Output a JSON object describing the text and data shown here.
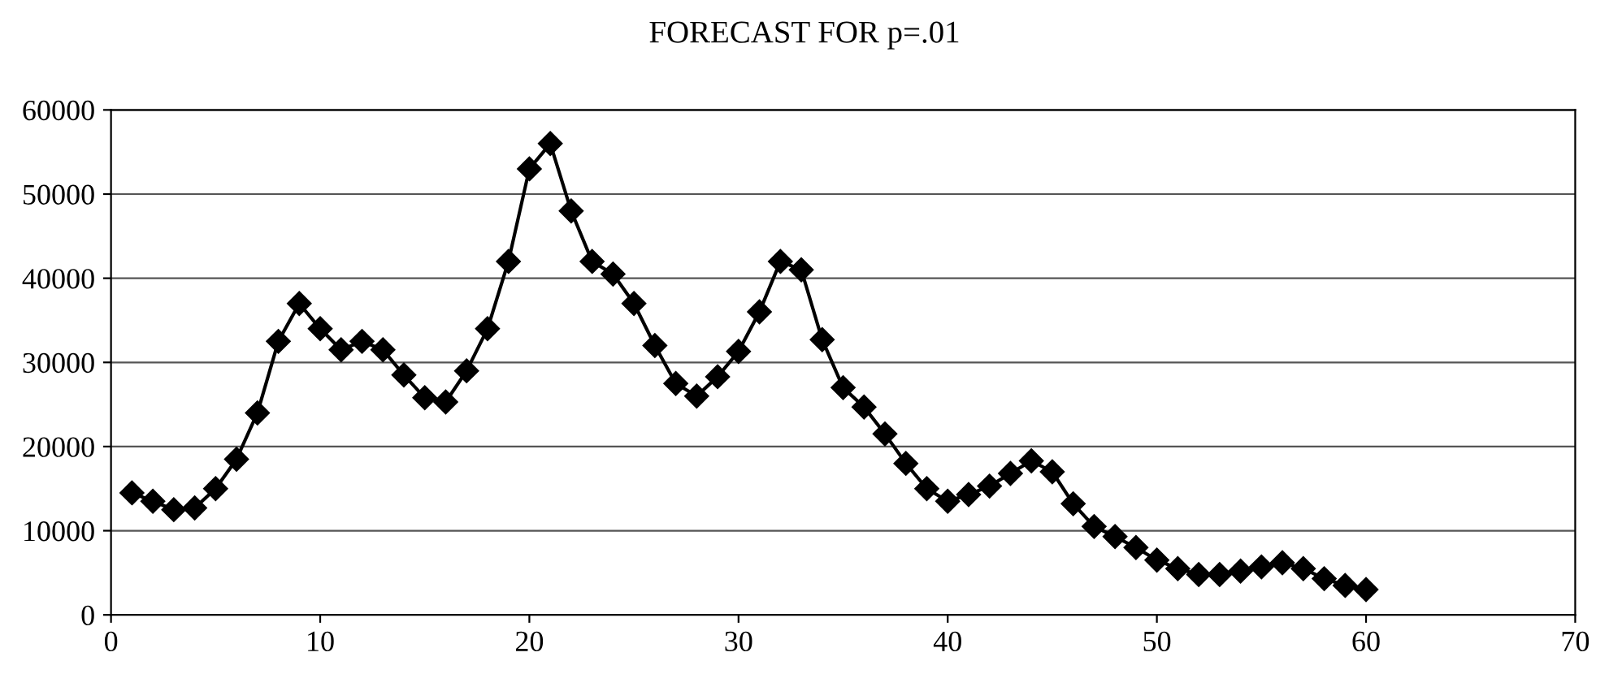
{
  "chart_data": {
    "type": "line",
    "title": "FORECAST FOR p=.01",
    "x": [
      1,
      2,
      3,
      4,
      5,
      6,
      7,
      8,
      9,
      10,
      11,
      12,
      13,
      14,
      15,
      16,
      17,
      18,
      19,
      20,
      21,
      22,
      23,
      24,
      25,
      26,
      27,
      28,
      29,
      30,
      31,
      32,
      33,
      34,
      35,
      36,
      37,
      38,
      39,
      40,
      41,
      42,
      43,
      44,
      45,
      46,
      47,
      48,
      49,
      50,
      51,
      52,
      53,
      54,
      55,
      56,
      57,
      58,
      59,
      60
    ],
    "series": [
      {
        "color": "#000000",
        "values": [
          14500,
          13500,
          12500,
          12700,
          15000,
          18500,
          24000,
          32500,
          37000,
          34000,
          31500,
          32500,
          31500,
          28500,
          25800,
          25300,
          29000,
          34000,
          42000,
          53000,
          56000,
          48000,
          42000,
          40500,
          37000,
          32000,
          27500,
          26000,
          28300,
          31300,
          36000,
          42000,
          41000,
          32700,
          27000,
          24700,
          21500,
          18000,
          15000,
          13500,
          14300,
          15300,
          16800,
          18300,
          17000,
          13200,
          10500,
          9300,
          8000,
          6500,
          5500,
          4800,
          4800,
          5200,
          5700,
          6200,
          5500,
          4300,
          3500,
          3000
        ]
      }
    ],
    "xlim": [
      0,
      70
    ],
    "xticks": [
      0,
      10,
      20,
      30,
      40,
      50,
      60,
      70
    ],
    "ylim": [
      0,
      60000
    ],
    "yticks": [
      0,
      10000,
      20000,
      30000,
      40000,
      50000,
      60000
    ],
    "grid": "y",
    "marker": "diamond",
    "line_style": "solid",
    "legend": false
  }
}
